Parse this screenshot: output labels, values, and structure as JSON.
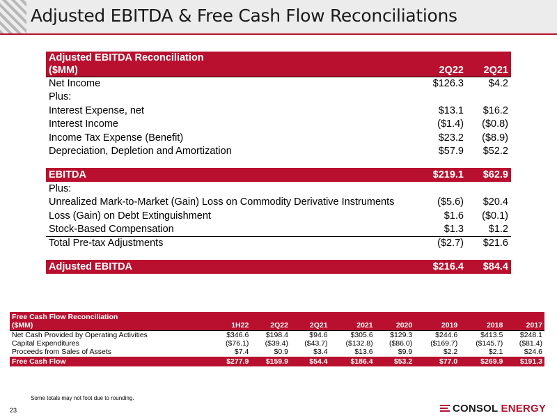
{
  "title": "Adjusted EBITDA & Free Cash Flow Reconciliations",
  "ebitda": {
    "header_line1": "Adjusted EBITDA Reconciliation",
    "header_line2": "($MM)",
    "col1": "2Q22",
    "col2": "2Q21",
    "rows_a": [
      {
        "label": "Net Income",
        "v1": "$126.3",
        "v2": "$4.2"
      },
      {
        "label": "Plus:",
        "v1": "",
        "v2": ""
      },
      {
        "label": "Interest Expense, net",
        "v1": "$13.1",
        "v2": "$16.2"
      },
      {
        "label": "Interest Income",
        "v1": "($1.4)",
        "v2": "($0.8)"
      },
      {
        "label": "Income Tax Expense (Benefit)",
        "v1": "$23.2",
        "v2": "($8.9)"
      },
      {
        "label": "Depreciation, Depletion and Amortization",
        "v1": "$57.9",
        "v2": "$52.2"
      }
    ],
    "ebitda_row": {
      "label": "EBITDA",
      "v1": "$219.1",
      "v2": "$62.9"
    },
    "rows_b": [
      {
        "label": "Plus:",
        "v1": "",
        "v2": ""
      },
      {
        "label": "Unrealized Mark-to-Market (Gain) Loss on Commodity Derivative Instruments",
        "v1": "($5.6)",
        "v2": "$20.4"
      },
      {
        "label": "Loss (Gain) on Debt Extinguishment",
        "v1": "$1.6",
        "v2": "($0.1)"
      },
      {
        "label": "Stock-Based Compensation",
        "v1": "$1.3",
        "v2": "$1.2"
      }
    ],
    "total_row": {
      "label": "Total Pre-tax Adjustments",
      "v1": "($2.7)",
      "v2": "$21.6"
    },
    "adj_row": {
      "label": "Adjusted EBITDA",
      "v1": "$216.4",
      "v2": "$84.4"
    }
  },
  "fcf": {
    "header_line1": "Free Cash Flow Reconciliation",
    "header_line2": "($MM)",
    "columns": [
      "1H22",
      "2Q22",
      "2Q21",
      "2021",
      "2020",
      "2019",
      "2018",
      "2017"
    ],
    "rows": [
      {
        "label": "Net Cash Provided by Operating Activities",
        "values": [
          "$346.6",
          "$198.4",
          "$94.6",
          "$305.6",
          "$129.3",
          "$244.6",
          "$413.5",
          "$248.1"
        ]
      },
      {
        "label": "Capital Expenditures",
        "values": [
          "($76.1)",
          "($39.4)",
          "($43.7)",
          "($132.8)",
          "($86.0)",
          "($169.7)",
          "($145.7)",
          "($81.4)"
        ]
      },
      {
        "label": "Proceeds from Sales of Assets",
        "values": [
          "$7.4",
          "$0.9",
          "$3.4",
          "$13.6",
          "$9.9",
          "$2.2",
          "$2.1",
          "$24.6"
        ]
      }
    ],
    "total": {
      "label": "Free Cash Flow",
      "values": [
        "$277.9",
        "$159.9",
        "$54.4",
        "$186.4",
        "$53.2",
        "$77.0",
        "$269.9",
        "$191.3"
      ]
    }
  },
  "footnote": "Some totals may not foot due to rounding.",
  "page_number": "23",
  "logo": {
    "word1": "CONSOL",
    "word2": "ENERGY"
  },
  "colors": {
    "accent": "#b8102e",
    "header_bg": "#ececec"
  }
}
